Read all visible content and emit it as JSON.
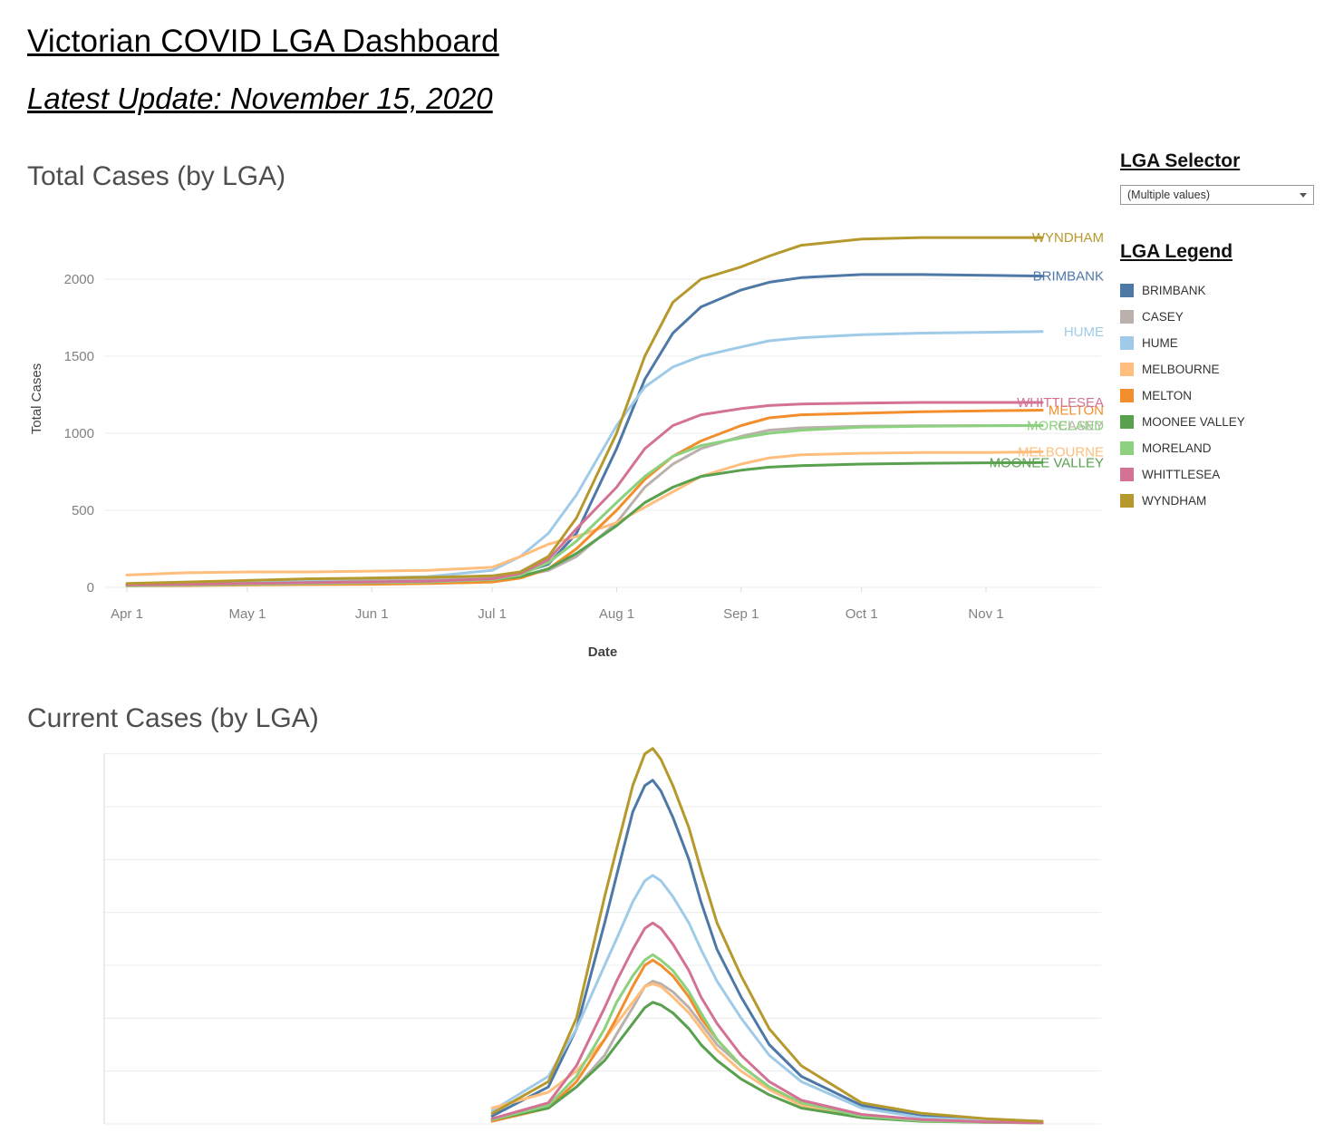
{
  "page": {
    "title": "Victorian COVID LGA Dashboard",
    "subtitle": "Latest Update: November 15, 2020"
  },
  "sections": {
    "total_title": "Total Cases (by LGA)",
    "current_title": "Current Cases (by LGA)"
  },
  "lga_selector": {
    "heading": "LGA Selector",
    "value": "(Multiple values)"
  },
  "legend": {
    "heading": "LGA Legend",
    "items": [
      {
        "label": "BRIMBANK",
        "color": "#4e79a7"
      },
      {
        "label": "CASEY",
        "color": "#bab0ac"
      },
      {
        "label": "HUME",
        "color": "#a0cbe8"
      },
      {
        "label": "MELBOURNE",
        "color": "#ffbe7d"
      },
      {
        "label": "MELTON",
        "color": "#f28e2b"
      },
      {
        "label": "MOONEE VALLEY",
        "color": "#59a14f"
      },
      {
        "label": "MORELAND",
        "color": "#8cd17d"
      },
      {
        "label": "WHITTLESEA",
        "color": "#d37295"
      },
      {
        "label": "WYNDHAM",
        "color": "#b6992d"
      }
    ]
  },
  "chart_data": [
    {
      "type": "line",
      "title": "Total Cases (by LGA)",
      "xlabel": "Date",
      "ylabel": "Total Cases",
      "ylim": [
        0,
        2300
      ],
      "yticks": [
        0,
        500,
        1000,
        1500,
        2000
      ],
      "grid": "horizontal",
      "legend_position": "right-panel",
      "x_days_from_apr1": [
        0,
        15,
        30,
        45,
        61,
        75,
        91,
        98,
        105,
        112,
        122,
        129,
        136,
        143,
        153,
        160,
        168,
        183,
        198,
        214,
        228
      ],
      "xticks": [
        {
          "day": 0,
          "label": "Apr 1"
        },
        {
          "day": 30,
          "label": "May 1"
        },
        {
          "day": 61,
          "label": "Jun 1"
        },
        {
          "day": 91,
          "label": "Jul 1"
        },
        {
          "day": 122,
          "label": "Aug 1"
        },
        {
          "day": 153,
          "label": "Sep 1"
        },
        {
          "day": 183,
          "label": "Oct 1"
        },
        {
          "day": 214,
          "label": "Nov 1"
        }
      ],
      "series": [
        {
          "name": "BRIMBANK",
          "color": "#4e79a7",
          "values": [
            15,
            25,
            35,
            45,
            55,
            60,
            70,
            90,
            150,
            350,
            900,
            1350,
            1650,
            1820,
            1930,
            1980,
            2010,
            2030,
            2030,
            2025,
            2020
          ]
        },
        {
          "name": "CASEY",
          "color": "#bab0ac",
          "values": [
            20,
            30,
            35,
            40,
            45,
            50,
            60,
            75,
            110,
            200,
            420,
            650,
            800,
            900,
            980,
            1020,
            1035,
            1045,
            1048,
            1050,
            1050
          ]
        },
        {
          "name": "HUME",
          "color": "#a0cbe8",
          "values": [
            20,
            30,
            40,
            50,
            60,
            70,
            110,
            200,
            350,
            600,
            1050,
            1300,
            1430,
            1500,
            1560,
            1600,
            1620,
            1640,
            1650,
            1655,
            1660
          ]
        },
        {
          "name": "MELBOURNE",
          "color": "#ffbe7d",
          "values": [
            80,
            95,
            100,
            100,
            105,
            110,
            130,
            200,
            280,
            330,
            420,
            520,
            620,
            720,
            800,
            840,
            860,
            870,
            875,
            875,
            880
          ]
        },
        {
          "name": "MELTON",
          "color": "#f28e2b",
          "values": [
            10,
            12,
            15,
            18,
            20,
            25,
            35,
            60,
            120,
            250,
            500,
            700,
            850,
            950,
            1050,
            1100,
            1120,
            1130,
            1140,
            1145,
            1150
          ]
        },
        {
          "name": "MOONEE VALLEY",
          "color": "#59a14f",
          "values": [
            15,
            20,
            25,
            30,
            35,
            40,
            50,
            70,
            120,
            220,
            400,
            550,
            650,
            720,
            760,
            780,
            790,
            800,
            805,
            808,
            810
          ]
        },
        {
          "name": "MORELAND",
          "color": "#8cd17d",
          "values": [
            10,
            15,
            20,
            25,
            30,
            35,
            50,
            80,
            160,
            300,
            550,
            720,
            850,
            920,
            970,
            1000,
            1020,
            1040,
            1045,
            1048,
            1050
          ]
        },
        {
          "name": "WHITTLESEA",
          "color": "#d37295",
          "values": [
            15,
            20,
            25,
            30,
            35,
            40,
            55,
            90,
            180,
            380,
            650,
            900,
            1050,
            1120,
            1160,
            1180,
            1190,
            1195,
            1200,
            1200,
            1200
          ]
        },
        {
          "name": "WYNDHAM",
          "color": "#b6992d",
          "values": [
            25,
            35,
            45,
            55,
            60,
            65,
            75,
            100,
            200,
            450,
            1000,
            1500,
            1850,
            2000,
            2080,
            2150,
            2220,
            2260,
            2270,
            2270,
            2270
          ]
        }
      ]
    },
    {
      "type": "line",
      "title": "Current Cases (by LGA)",
      "ylim": [
        0,
        720
      ],
      "visible_portion": "only top of plot visible; chart clipped at page bottom",
      "x_days_from_apr1": [
        91,
        105,
        112,
        119,
        122,
        126,
        129,
        131,
        133,
        136,
        140,
        143,
        147,
        153,
        160,
        168,
        183,
        198,
        214,
        228
      ],
      "series": [
        {
          "name": "BRIMBANK",
          "color": "#4e79a7",
          "values": [
            15,
            70,
            180,
            380,
            470,
            590,
            640,
            650,
            630,
            580,
            500,
            420,
            330,
            240,
            150,
            90,
            35,
            15,
            8,
            5
          ]
        },
        {
          "name": "CASEY",
          "color": "#bab0ac",
          "values": [
            10,
            30,
            70,
            130,
            170,
            220,
            260,
            270,
            265,
            250,
            220,
            190,
            150,
            110,
            70,
            40,
            15,
            6,
            3,
            2
          ]
        },
        {
          "name": "HUME",
          "color": "#a0cbe8",
          "values": [
            25,
            90,
            180,
            300,
            350,
            420,
            460,
            470,
            460,
            430,
            380,
            330,
            270,
            200,
            130,
            80,
            30,
            12,
            6,
            4
          ]
        },
        {
          "name": "MELBOURNE",
          "color": "#ffbe7d",
          "values": [
            30,
            60,
            100,
            160,
            190,
            230,
            260,
            265,
            260,
            240,
            210,
            180,
            140,
            100,
            65,
            35,
            14,
            6,
            3,
            2
          ]
        },
        {
          "name": "MELTON",
          "color": "#f28e2b",
          "values": [
            5,
            30,
            80,
            160,
            200,
            260,
            300,
            310,
            300,
            280,
            240,
            200,
            160,
            110,
            70,
            40,
            15,
            8,
            4,
            2
          ]
        },
        {
          "name": "MOONEE VALLEY",
          "color": "#59a14f",
          "values": [
            8,
            30,
            70,
            120,
            150,
            190,
            220,
            230,
            225,
            210,
            180,
            150,
            120,
            85,
            55,
            30,
            12,
            5,
            3,
            2
          ]
        },
        {
          "name": "MORELAND",
          "color": "#8cd17d",
          "values": [
            8,
            35,
            90,
            180,
            230,
            280,
            310,
            320,
            310,
            290,
            250,
            210,
            160,
            110,
            70,
            40,
            15,
            6,
            3,
            2
          ]
        },
        {
          "name": "WHITTLESEA",
          "color": "#d37295",
          "values": [
            10,
            40,
            110,
            220,
            270,
            330,
            370,
            380,
            370,
            340,
            290,
            240,
            190,
            130,
            80,
            45,
            18,
            8,
            4,
            2
          ]
        },
        {
          "name": "WYNDHAM",
          "color": "#b6992d",
          "values": [
            20,
            80,
            200,
            430,
            520,
            640,
            700,
            710,
            690,
            640,
            560,
            480,
            380,
            280,
            180,
            110,
            40,
            20,
            10,
            5
          ]
        }
      ]
    }
  ]
}
